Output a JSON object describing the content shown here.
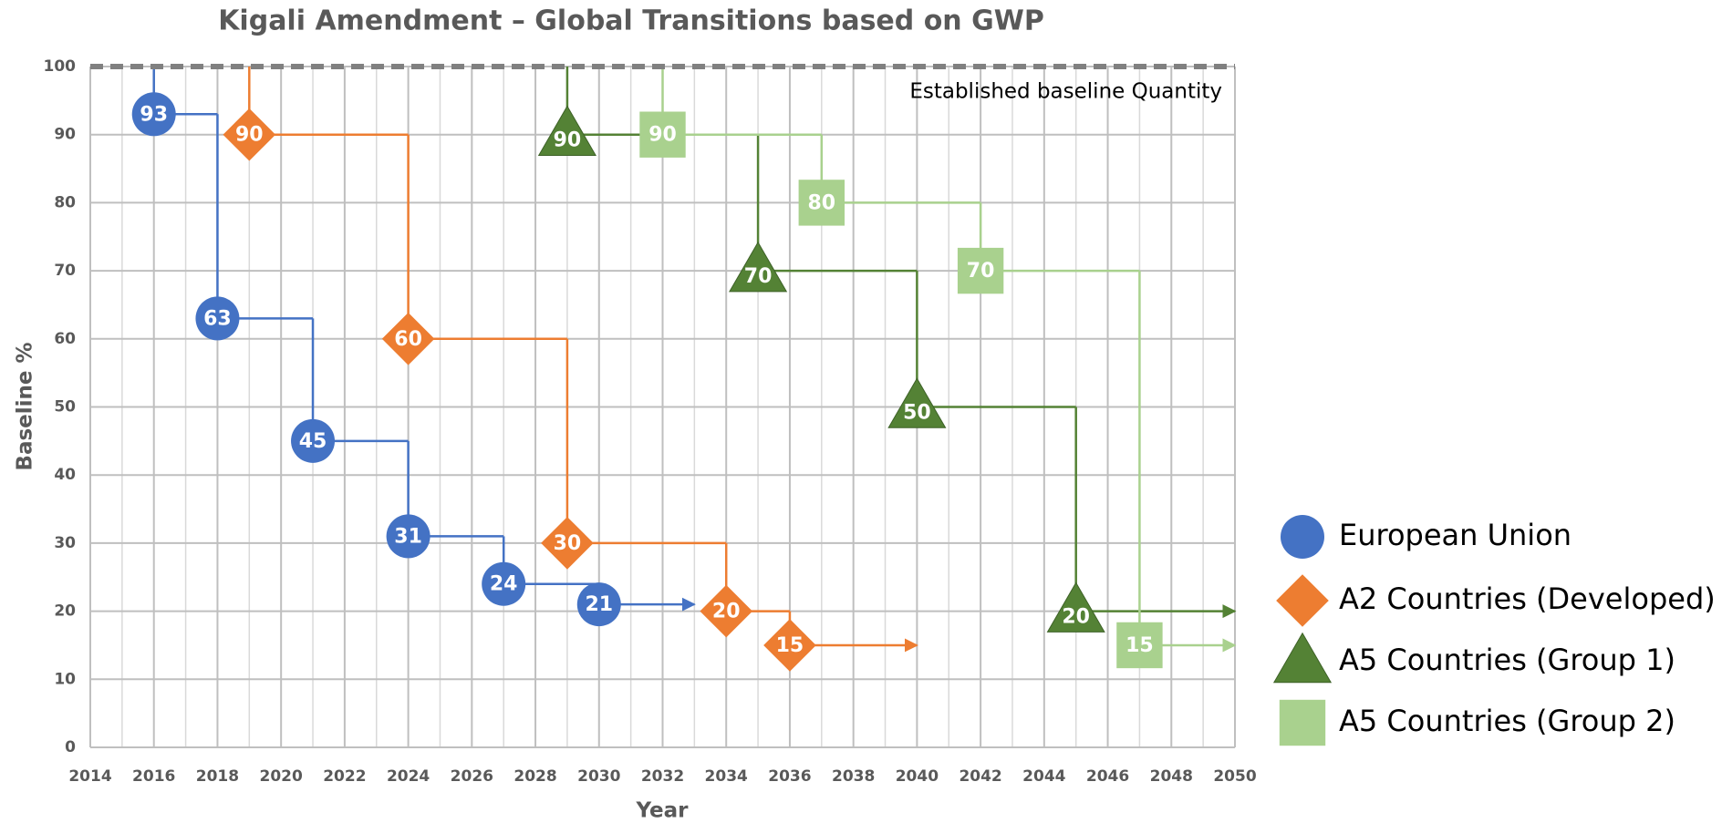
{
  "chart_data": {
    "type": "step",
    "title": "Kigali Amendment – Global Transitions based on GWP",
    "x_label": "Year",
    "y_label": "Baseline %",
    "xlim": [
      2014,
      2050
    ],
    "xticks": [
      2014,
      2016,
      2018,
      2020,
      2022,
      2024,
      2026,
      2028,
      2030,
      2032,
      2034,
      2036,
      2038,
      2040,
      2042,
      2044,
      2046,
      2048,
      2050
    ],
    "ylim": [
      0,
      100
    ],
    "yticks": [
      0,
      10,
      20,
      30,
      40,
      50,
      60,
      70,
      80,
      90,
      100
    ],
    "grid": true,
    "legend": "right",
    "baseline": {
      "value": 100,
      "label": "Established baseline Quantity"
    },
    "series": [
      {
        "name": "European Union",
        "color": "#4472c4",
        "marker": "circle",
        "x": [
          2016,
          2018,
          2021,
          2024,
          2027,
          2030
        ],
        "values": [
          93,
          63,
          45,
          31,
          24,
          21
        ],
        "end": 2033
      },
      {
        "name": "A2 Countries (Developed)",
        "color": "#ed7d31",
        "marker": "diamond",
        "x": [
          2019,
          2024,
          2029,
          2034,
          2036
        ],
        "values": [
          90,
          60,
          30,
          20,
          15
        ],
        "end": 2040
      },
      {
        "name": "A5 Countries (Group 1)",
        "color": "#548235",
        "marker": "triangle",
        "x": [
          2029,
          2035,
          2040,
          2045
        ],
        "values": [
          90,
          70,
          50,
          20
        ],
        "end": 2050
      },
      {
        "name": "A5 Countries (Group 2)",
        "color": "#a9d18e",
        "marker": "square",
        "x": [
          2032,
          2037,
          2042,
          2047
        ],
        "values": [
          90,
          80,
          70,
          15
        ],
        "end": 2050
      }
    ]
  }
}
